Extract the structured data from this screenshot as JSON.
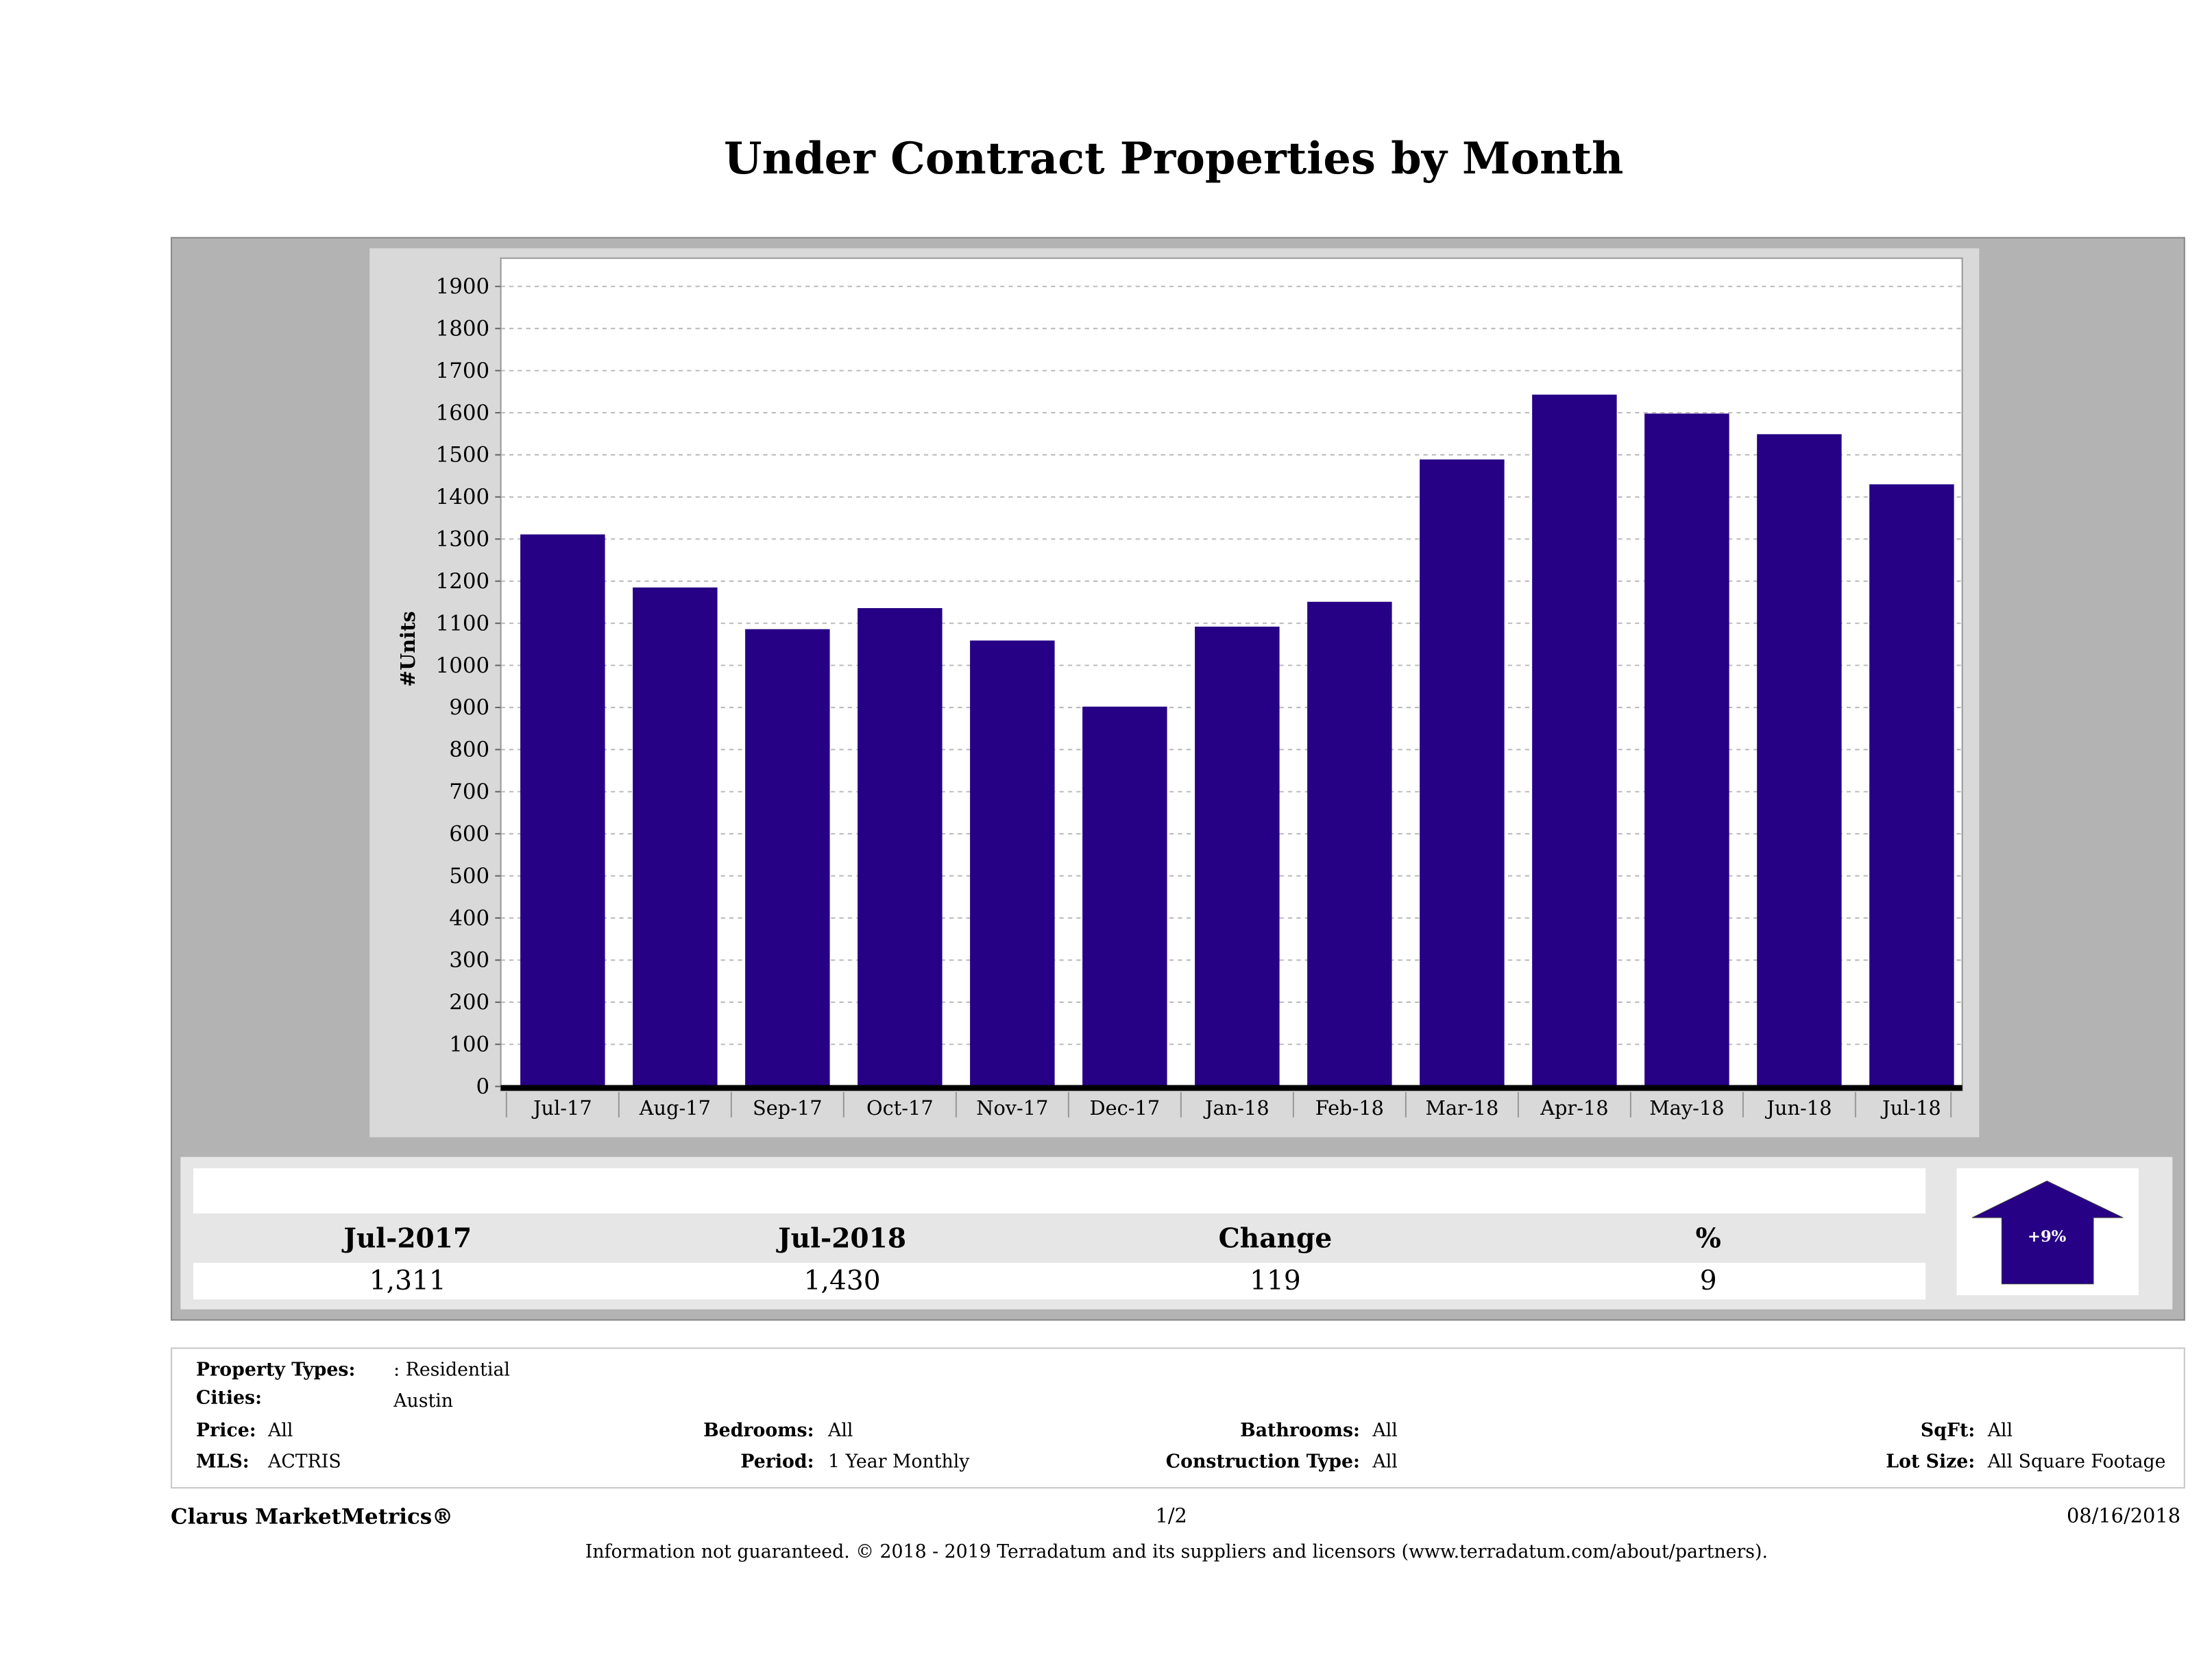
{
  "title": "Under Contract Properties by Month",
  "chart_data": {
    "type": "bar",
    "title": "Under Contract Properties by Month",
    "xlabel": "",
    "ylabel": "#Units",
    "categories": [
      "Jul-17",
      "Aug-17",
      "Sep-17",
      "Oct-17",
      "Nov-17",
      "Dec-17",
      "Jan-18",
      "Feb-18",
      "Mar-18",
      "Apr-18",
      "May-18",
      "Jun-18",
      "Jul-18"
    ],
    "values": [
      1311,
      1185,
      1086,
      1136,
      1059,
      902,
      1092,
      1151,
      1489,
      1643,
      1598,
      1549,
      1430
    ],
    "ylim": [
      0,
      1950
    ],
    "yticks": [
      0,
      100,
      200,
      300,
      400,
      500,
      600,
      700,
      800,
      900,
      1000,
      1100,
      1200,
      1300,
      1400,
      1500,
      1600,
      1700,
      1800,
      1900
    ],
    "grid": true,
    "bar_color": "#260085"
  },
  "summary": {
    "headers": [
      "Jul-2017",
      "Jul-2018",
      "Change",
      "%"
    ],
    "values": [
      "1,311",
      "1,430",
      "119",
      "9"
    ],
    "badge": "+9%",
    "badge_icon": "arrow-up-icon"
  },
  "filters": {
    "property_types_label": "Property Types:",
    "property_types": ": Residential",
    "cities_label": "Cities:",
    "cities": "Austin",
    "price_label": "Price:",
    "price": "All",
    "bedrooms_label": "Bedrooms:",
    "bedrooms": "All",
    "bathrooms_label": "Bathrooms:",
    "bathrooms": "All",
    "sqft_label": "SqFt:",
    "sqft": "All",
    "mls_label": "MLS:",
    "mls": "ACTRIS",
    "period_label": "Period:",
    "period": "1 Year Monthly",
    "construction_label": "Construction Type:",
    "construction": "All",
    "lot_label": "Lot Size:",
    "lot": "All Square Footage"
  },
  "footer": {
    "brand": "Clarus MarketMetrics®",
    "page": "1/2",
    "date": "08/16/2018",
    "disclaimer": "Information not guaranteed. © 2018 - 2019 Terradatum and its suppliers and licensors (www.terradatum.com/about/partners)."
  }
}
